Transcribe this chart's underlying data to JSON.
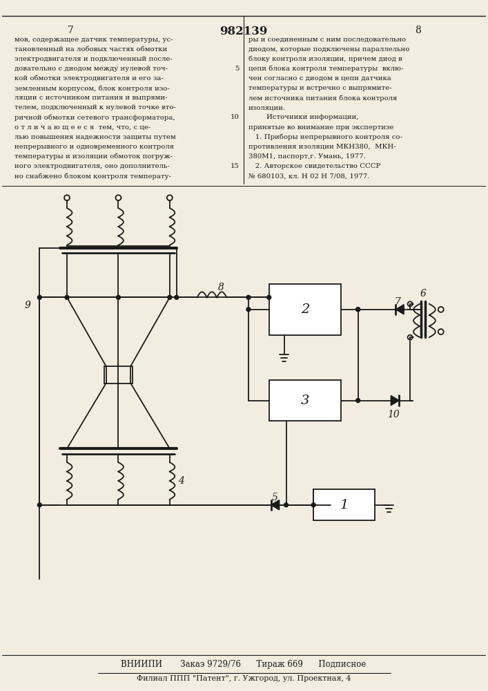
{
  "bg_color": "#f2ede0",
  "line_color": "#1a1a1a",
  "title_text": "982139",
  "page_left": "7",
  "page_right": "8",
  "text_left": "мов, содержащее датчик температуры, ус-\nтановленный на лобовых частях обмотки\nэлектродвигателя и подключенный после-\nдовательно с диодом между нулевой точ-\nкой обмотки электродвигателя и его за-\nземленным корпусом, блок контроля изо-\nляции с источником питания и выпрями-\nтелем, подключенный к нулевой точке вто-\nричной обмотки сетевого трансформатора,\nо т л и ч а ю щ е е с я  тем, что, с це-\nлью повышения надежности защиты путем\nнепрерывного и одновременного контроля\nтемпературы и изоляции обмоток погруж-\nного электродвигателя, оно дополнитель-\nно снабжено блоком контроля температу-",
  "text_right": "ры и соединенным с ним последовательно\nдиодом, которые подключены параллельно\nблоку контроля изоляции, причем диод в\nцепи блока контроля температуры  вклю-\nчен согласно с диодом в цепи датчика\nтемпературы и встречно с выпрямите-\nлем источника питания блока контроля\nизоляции.\n        Источники информации,\nпринятые во внимание при экспертизе\n   1. Приборы непрерывного контроля со-\nпротивления изоляции МКН380,  МКН-\n380М1, паспорт,г. Умань, 1977.\n   2. Авторское свидетельство СССР\n№ 680103, кл. Н 02 Н 7/08, 1977.",
  "footer_text": "ВНИИПИ       Закаэ 9729/76      Тираж 669      Подписное",
  "footer2_text": "Филиал ППП \"Патент\", г. Ужгород, ул. Проектная, 4"
}
